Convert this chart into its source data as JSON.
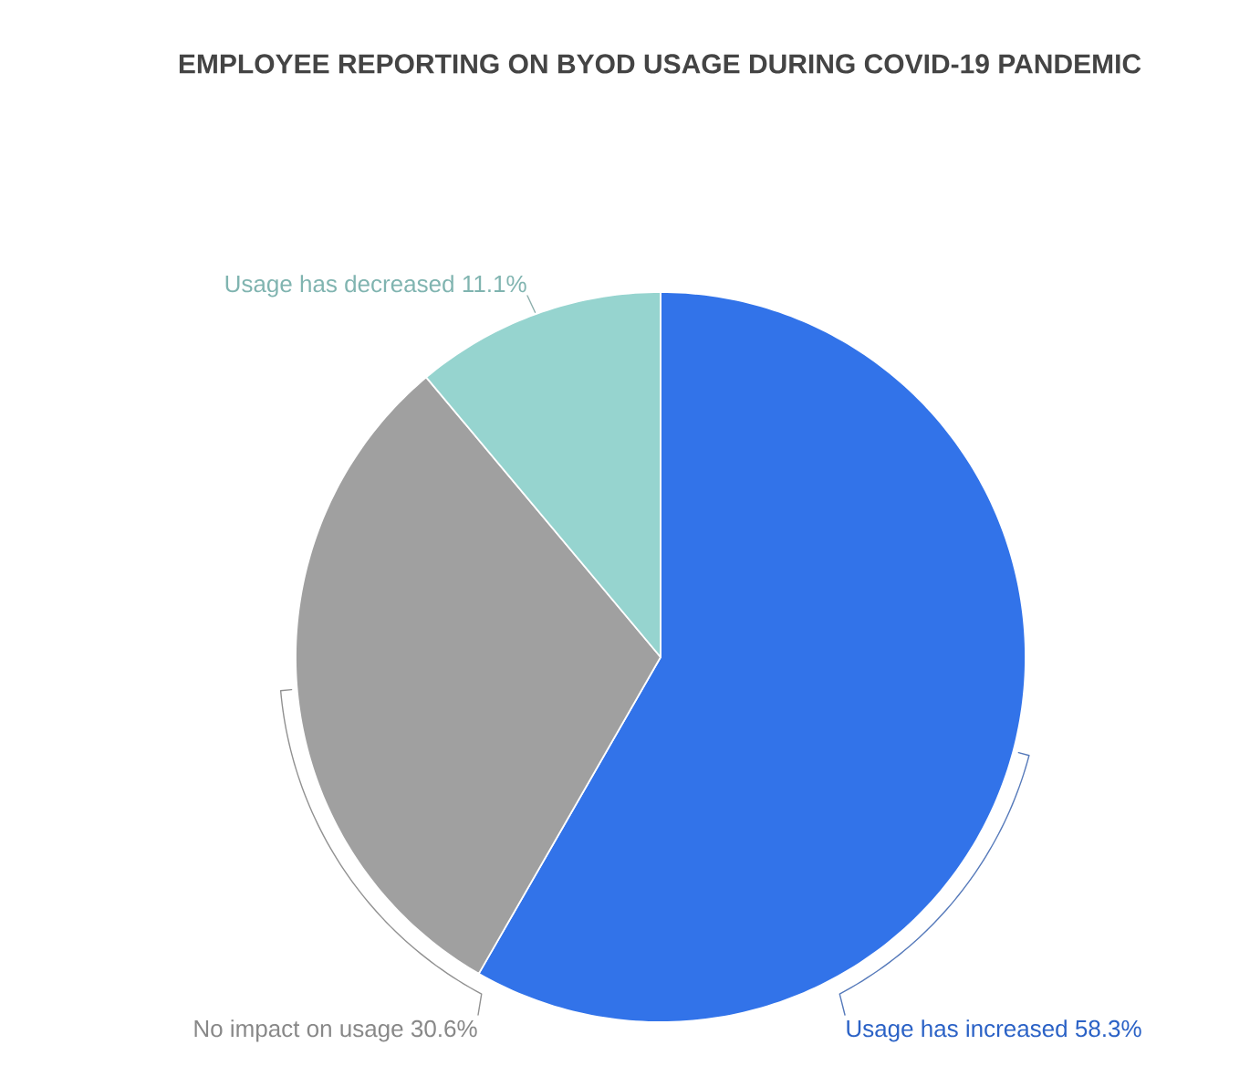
{
  "chart_data": {
    "type": "pie",
    "title": "EMPLOYEE REPORTING ON BYOD USAGE DURING COVID-19 PANDEMIC",
    "categories": [
      "Usage has increased",
      "No impact on usage",
      "Usage has decreased"
    ],
    "values": [
      58.3,
      30.6,
      11.1
    ],
    "colors": [
      "#3273e9",
      "#a0a0a0",
      "#96d4cf"
    ],
    "value_labels": [
      "58.3%",
      "30.6%",
      "11.1%"
    ]
  }
}
